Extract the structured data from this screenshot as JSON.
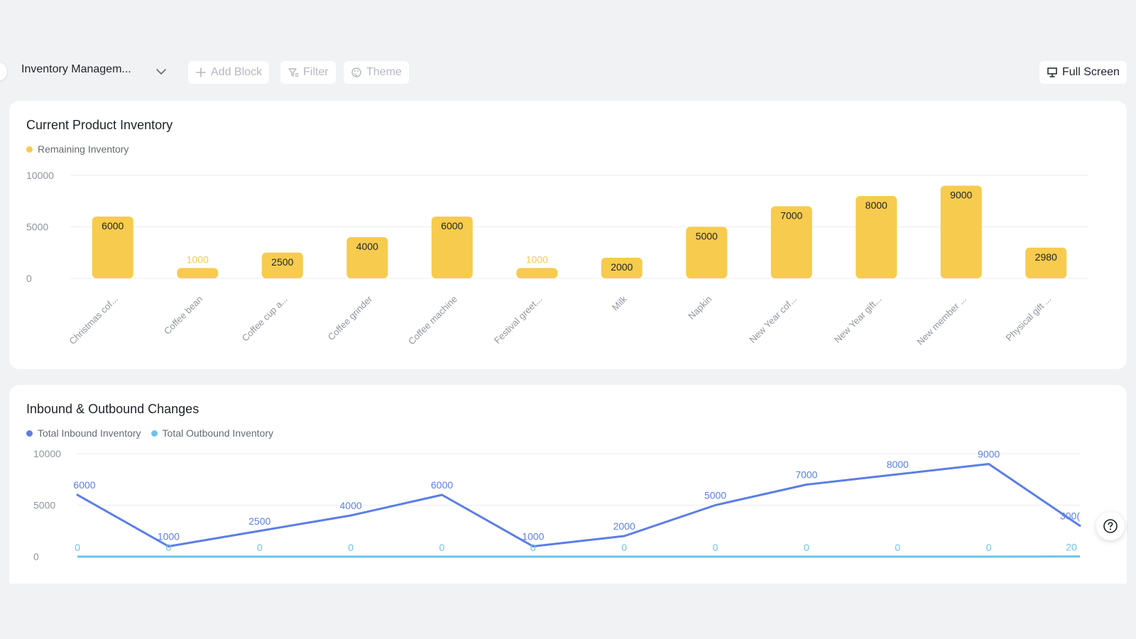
{
  "toolbar": {
    "dashboard_title": "Inventory Managem...",
    "add_block_label": "Add Block",
    "filter_label": "Filter",
    "theme_label": "Theme",
    "full_screen_label": "Full Screen"
  },
  "colors": {
    "bar": "#f7cb4d",
    "inbound": "#5b7ee5",
    "outbound": "#6cc3e8",
    "grid": "#eceef1",
    "axis_text": "#8f959e"
  },
  "chart_data": [
    {
      "type": "bar",
      "title": "Current Product Inventory",
      "legend_position": "top-left",
      "grid": true,
      "categories": [
        "Christmas cof...",
        "Coffee bean",
        "Coffee cup a...",
        "Coffee grinder",
        "Coffee machine",
        "Festival greet...",
        "Milk",
        "Napkin",
        "New Year cof...",
        "New Year gift...",
        "New member ...",
        "Physical gift ..."
      ],
      "series": [
        {
          "name": "Remaining Inventory",
          "values": [
            6000,
            1000,
            2500,
            4000,
            6000,
            1000,
            2000,
            5000,
            7000,
            8000,
            9000,
            2980
          ]
        }
      ],
      "yticks": [
        "10000",
        "5000",
        "0"
      ],
      "ylim": [
        0,
        10000
      ]
    },
    {
      "type": "line",
      "title": "Inbound & Outbound Changes",
      "legend_position": "top-left",
      "grid": true,
      "series": [
        {
          "name": "Total Inbound Inventory",
          "values": [
            6000,
            1000,
            2500,
            4000,
            6000,
            1000,
            2000,
            5000,
            7000,
            8000,
            9000,
            3000
          ]
        },
        {
          "name": "Total Outbound Inventory",
          "values": [
            0,
            0,
            0,
            0,
            0,
            0,
            0,
            0,
            0,
            0,
            0,
            20
          ]
        }
      ],
      "inbound_labels": [
        "6000",
        "1000",
        "2500",
        "4000",
        "6000",
        "1000",
        "2000",
        "5000",
        "7000",
        "8000",
        "9000",
        "300("
      ],
      "outbound_labels": [
        "0",
        "0",
        "0",
        "0",
        "0",
        "0",
        "0",
        "0",
        "0",
        "0",
        "0",
        "20"
      ],
      "yticks": [
        "10000",
        "5000",
        "0"
      ],
      "ylim": [
        0,
        10000
      ]
    }
  ]
}
